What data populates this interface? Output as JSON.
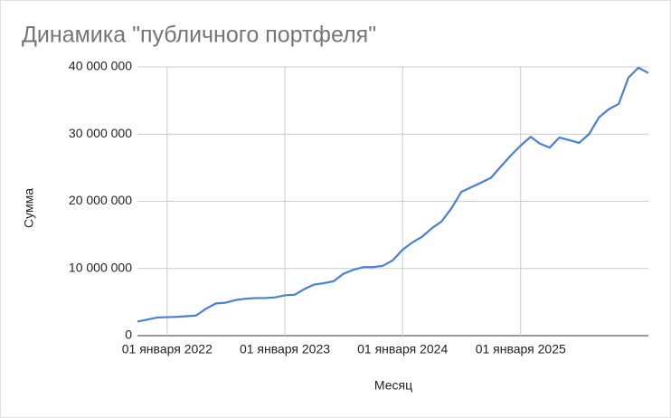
{
  "chart_data": {
    "type": "line",
    "title": "Динамика \"публичного портфеля\"",
    "x_label": "Месяц",
    "y_label": "Сумма",
    "x": [
      "2021-10-01",
      "2021-11-01",
      "2021-12-01",
      "2022-01-01",
      "2022-02-01",
      "2022-03-01",
      "2022-04-01",
      "2022-05-01",
      "2022-06-01",
      "2022-07-01",
      "2022-08-01",
      "2022-09-01",
      "2022-10-01",
      "2022-11-01",
      "2022-12-01",
      "2023-01-01",
      "2023-02-01",
      "2023-03-01",
      "2023-04-01",
      "2023-05-01",
      "2023-06-01",
      "2023-07-01",
      "2023-08-01",
      "2023-09-01",
      "2023-10-01",
      "2023-11-01",
      "2023-12-01",
      "2024-01-01",
      "2024-02-01",
      "2024-03-01",
      "2024-04-01",
      "2024-05-01",
      "2024-06-01",
      "2024-07-01",
      "2024-08-01",
      "2024-09-01",
      "2024-10-01",
      "2024-11-01",
      "2024-12-01",
      "2025-01-01",
      "2025-02-01",
      "2025-03-01",
      "2025-04-01",
      "2025-05-01",
      "2025-06-01",
      "2025-07-01",
      "2025-08-01",
      "2025-09-01",
      "2025-10-01",
      "2025-11-01",
      "2025-12-01",
      "2026-01-01",
      "2026-02-01"
    ],
    "series": [
      {
        "name": "Сумма",
        "color": "#4a7fd5",
        "values": [
          2100000,
          2400000,
          2700000,
          2750000,
          2800000,
          2900000,
          3000000,
          4000000,
          4800000,
          4900000,
          5300000,
          5500000,
          5600000,
          5600000,
          5700000,
          6000000,
          6100000,
          6900000,
          7600000,
          7800000,
          8100000,
          9200000,
          9800000,
          10200000,
          10200000,
          10400000,
          11200000,
          12800000,
          13900000,
          14700000,
          16000000,
          17000000,
          19000000,
          21400000,
          22100000,
          22800000,
          23500000,
          25200000,
          26800000,
          28300000,
          29600000,
          28600000,
          28000000,
          29500000,
          29100000,
          28700000,
          30000000,
          32500000,
          33700000,
          34500000,
          38400000,
          39900000,
          39100000
        ]
      }
    ],
    "xlim": [
      "2021-10-01",
      "2026-02-01"
    ],
    "xticks": [
      {
        "value": "2022-01-01",
        "label": "01 января 2022"
      },
      {
        "value": "2023-01-01",
        "label": "01 января 2023"
      },
      {
        "value": "2024-01-01",
        "label": "01 января 2024"
      },
      {
        "value": "2025-01-01",
        "label": "01 января 2025"
      }
    ],
    "ylim": [
      0,
      40000000
    ],
    "yticks": [
      0,
      {
        "value": 10000000,
        "label": "10 000 000"
      },
      {
        "value": 20000000,
        "label": "20 000 000"
      },
      {
        "value": 30000000,
        "label": "30 000 000"
      },
      {
        "value": 40000000,
        "label": "40 000 000"
      }
    ],
    "grid": true
  }
}
